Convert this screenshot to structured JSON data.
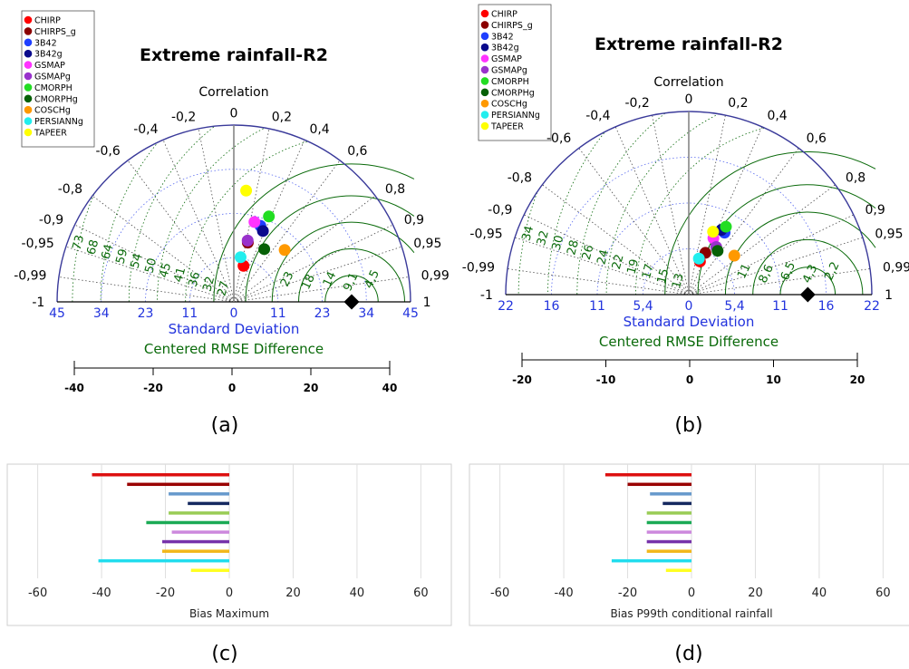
{
  "figure": {
    "panel_labels": [
      "(a)",
      "(b)",
      "(c)",
      "(d)"
    ]
  },
  "legend_colors": {
    "CHIRP": "#ff0000",
    "CHIRPS_g": "#8b0000",
    "3B42": "#1f3fff",
    "3B42g": "#0a0a8c",
    "GSMAP": "#ff33ff",
    "GSMAPg": "#9932cc",
    "CMORPH": "#22dd22",
    "CMORPHg": "#066006",
    "COSCHg": "#ff9900",
    "PERSIANNg": "#22eeee",
    "TAPEER": "#ffff00"
  },
  "chart_data": [
    {
      "type": "taylor",
      "panel": "(a)",
      "title": "Extreme rainfall-R2",
      "correlation_label": "Correlation",
      "std_label": "Standard Deviation",
      "rmse_label": "Centered RMSE Difference",
      "legend": [
        "CHIRP",
        "CHIRPS_g",
        "3B42",
        "3B42g",
        "GSMAP",
        "GSMAPg",
        "CMORPH",
        "CMORPHg",
        "COSCHg",
        "PERSIANNg",
        "TAPEER"
      ],
      "corr_ticks": [
        "-1",
        "-0,99",
        "-0,95",
        "-0,9",
        "-0,8",
        "-0,6",
        "-0,4",
        "-0,2",
        "0",
        "0,2",
        "0,4",
        "0,6",
        "0,8",
        "0,9",
        "0,95",
        "0,99",
        "1"
      ],
      "corr_values": [
        -1,
        -0.99,
        -0.95,
        -0.9,
        -0.8,
        -0.6,
        -0.4,
        -0.2,
        0,
        0.2,
        0.4,
        0.6,
        0.8,
        0.9,
        0.95,
        0.99,
        1
      ],
      "std_ticks": [
        "45",
        "34",
        "23",
        "11",
        "0",
        "11",
        "23",
        "34",
        "45"
      ],
      "std_max": 45,
      "rmse_labels_left": [
        "73",
        "68",
        "64",
        "59",
        "54",
        "50",
        "45",
        "41",
        "36",
        "32",
        "27"
      ],
      "rmse_labels_right": [
        "23",
        "18",
        "14",
        "9,1",
        "4,5"
      ],
      "reference_std": 30,
      "points": [
        {
          "name": "CHIRP",
          "std": 9.5,
          "corr": 0.26
        },
        {
          "name": "CHIRPS_g",
          "std": 15.5,
          "corr": 0.23
        },
        {
          "name": "3B42",
          "std": 20.5,
          "corr": 0.33
        },
        {
          "name": "3B42g",
          "std": 19.5,
          "corr": 0.38
        },
        {
          "name": "GSMAP",
          "std": 21,
          "corr": 0.25
        },
        {
          "name": "GSMAPg",
          "std": 16,
          "corr": 0.22
        },
        {
          "name": "CMORPH",
          "std": 23.5,
          "corr": 0.38
        },
        {
          "name": "CMORPHg",
          "std": 15.5,
          "corr": 0.5
        },
        {
          "name": "COSCHg",
          "std": 18.5,
          "corr": 0.7
        },
        {
          "name": "PERSIANNg",
          "std": 11.5,
          "corr": 0.15
        },
        {
          "name": "TAPEER",
          "std": 28.5,
          "corr": 0.11
        }
      ],
      "bias_axis_ticks": [
        "-40",
        "-20",
        "0",
        "20",
        "40"
      ]
    },
    {
      "type": "taylor",
      "panel": "(b)",
      "title": "Extreme rainfall-R2",
      "correlation_label": "Correlation",
      "std_label": "Standard Deviation",
      "rmse_label": "Centered RMSE Difference",
      "legend": [
        "CHIRP",
        "CHIRPS_g",
        "3B42",
        "3B42g",
        "GSMAP",
        "GSMAPg",
        "CMORPH",
        "CMORPHg",
        "COSCHg",
        "PERSIANNg",
        "TAPEER"
      ],
      "corr_ticks": [
        "-1",
        "-0,99",
        "-0,95",
        "-0,9",
        "-0,8",
        "-0,6",
        "-0,4",
        "-0,2",
        "0",
        "0,2",
        "0,4",
        "0,6",
        "0,8",
        "0,9",
        "0,95",
        "0,99",
        "1"
      ],
      "corr_values": [
        -1,
        -0.99,
        -0.95,
        -0.9,
        -0.8,
        -0.6,
        -0.4,
        -0.2,
        0,
        0.2,
        0.4,
        0.6,
        0.8,
        0.9,
        0.95,
        0.99,
        1
      ],
      "std_ticks": [
        "22",
        "16",
        "11",
        "5,4",
        "0",
        "5,4",
        "11",
        "16",
        "22"
      ],
      "std_max": 22,
      "rmse_labels_left": [
        "34",
        "32",
        "30",
        "28",
        "26",
        "24",
        "22",
        "19",
        "17",
        "15",
        "13"
      ],
      "rmse_labels_right": [
        "11",
        "8,6",
        "6,5",
        "4,3",
        "2,2"
      ],
      "reference_std": 14.3,
      "points": [
        {
          "name": "CHIRP",
          "std": 4.2,
          "corr": 0.32
        },
        {
          "name": "CHIRPS_g",
          "std": 5.4,
          "corr": 0.37
        },
        {
          "name": "3B42",
          "std": 8.6,
          "corr": 0.5
        },
        {
          "name": "3B42g",
          "std": 8.7,
          "corr": 0.45
        },
        {
          "name": "GSMAP",
          "std": 7.4,
          "corr": 0.4
        },
        {
          "name": "GSMAPg",
          "std": 6.6,
          "corr": 0.5
        },
        {
          "name": "CMORPH",
          "std": 9.3,
          "corr": 0.48
        },
        {
          "name": "CMORPHg",
          "std": 6.3,
          "corr": 0.55
        },
        {
          "name": "COSCHg",
          "std": 7.2,
          "corr": 0.76
        },
        {
          "name": "PERSIANNg",
          "std": 4.5,
          "corr": 0.27
        },
        {
          "name": "TAPEER",
          "std": 8.1,
          "corr": 0.36
        }
      ],
      "bias_axis_ticks": [
        "-20",
        "-10",
        "0",
        "10",
        "20"
      ]
    },
    {
      "type": "bar",
      "panel": "(c)",
      "orientation": "horizontal",
      "xlabel": "Bias Maximum",
      "xlim": [
        -65,
        65
      ],
      "x_ticks": [
        "-60",
        "-40",
        "-20",
        "0",
        "20",
        "40",
        "60"
      ],
      "categories": [
        "CHIRP",
        "CHIRPS_g",
        "3B42",
        "3B42g",
        "GSMAP",
        "GSMAPg",
        "CMORPH",
        "CMORPHg",
        "COSCHg",
        "PERSIANNg",
        "TAPEER"
      ],
      "colors": [
        "#dd1111",
        "#990000",
        "#6699cc",
        "#14285f",
        "#99cc55",
        "#1aaa55",
        "#cc88dd",
        "#7733aa",
        "#f2b71a",
        "#22ddee",
        "#ffff22"
      ],
      "values": [
        -43,
        -32,
        -19,
        -13,
        -19,
        -26,
        -18,
        -21,
        -21,
        -41,
        -12
      ]
    },
    {
      "type": "bar",
      "panel": "(d)",
      "orientation": "horizontal",
      "xlabel": "Bias P99th conditional rainfall",
      "xlim": [
        -65,
        65
      ],
      "x_ticks": [
        "-60",
        "-40",
        "-20",
        "0",
        "20",
        "40",
        "60"
      ],
      "categories": [
        "CHIRP",
        "CHIRPS_g",
        "3B42",
        "3B42g",
        "GSMAP",
        "GSMAPg",
        "CMORPH",
        "CMORPHg",
        "COSCHg",
        "PERSIANNg",
        "TAPEER"
      ],
      "colors": [
        "#dd1111",
        "#990000",
        "#6699cc",
        "#14285f",
        "#99cc55",
        "#1aaa55",
        "#cc88dd",
        "#7733aa",
        "#f2b71a",
        "#22ddee",
        "#ffff22"
      ],
      "values": [
        -27,
        -20,
        -13,
        -9,
        -14,
        -14,
        -14,
        -14,
        -14,
        -25,
        -8
      ]
    }
  ]
}
